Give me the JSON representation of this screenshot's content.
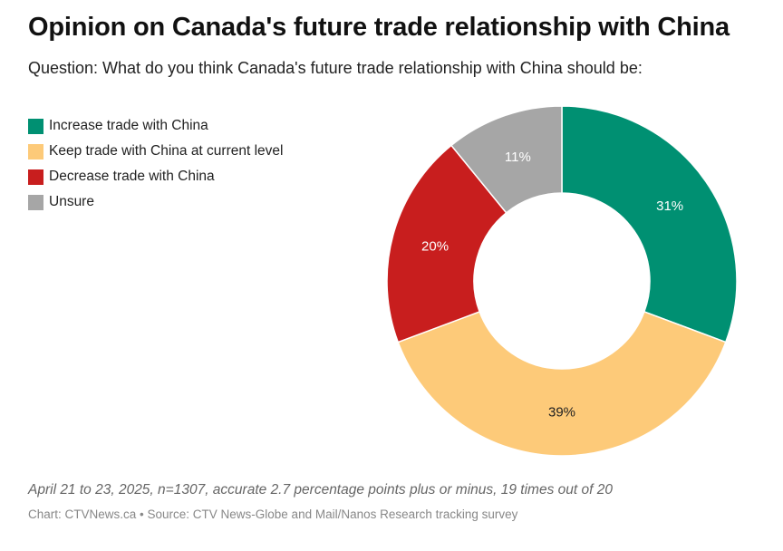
{
  "header": {
    "title": "Opinion on Canada's future trade relationship with China",
    "subtitle": "Question: What do you think Canada's future trade relationship with China should be:"
  },
  "footer": {
    "note": "April 21 to 23, 2025, n=1307, accurate 2.7 percentage points plus or minus, 19 times out of 20",
    "credit": "Chart: CTVNews.ca • Source: CTV News-Globe and Mail/Nanos Research tracking survey"
  },
  "chart_data": {
    "type": "pie",
    "variant": "donut",
    "title": "Opinion on Canada's future trade relationship with China",
    "subtitle": "Question: What do you think Canada's future trade relationship with China should be:",
    "legend_position": "top-left",
    "categories": [
      "Increase trade with China",
      "Keep trade with China at current level",
      "Decrease trade with China",
      "Unsure"
    ],
    "values": [
      31,
      39,
      20,
      11
    ],
    "value_labels": [
      "31%",
      "39%",
      "20%",
      "11%"
    ],
    "colors": [
      "#009072",
      "#FDCA79",
      "#C81E1E",
      "#A6A6A6"
    ],
    "label_colors": [
      "#ffffff",
      "#222222",
      "#ffffff",
      "#ffffff"
    ]
  }
}
